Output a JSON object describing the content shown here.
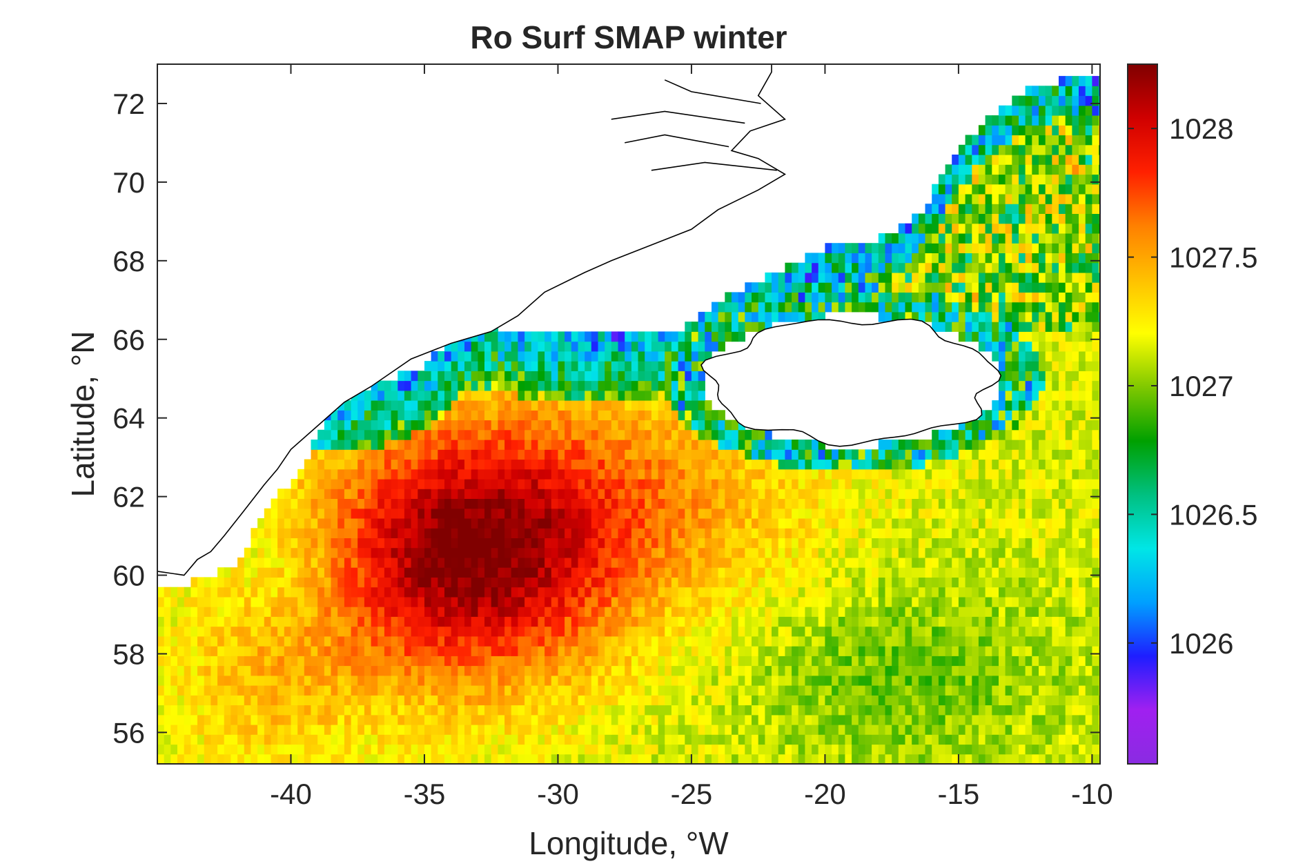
{
  "chart_data": {
    "type": "heatmap",
    "title": "Ro Surf SMAP winter",
    "xlabel": "Longitude, °W",
    "ylabel": "Latitude, °N",
    "xlim": [
      -45,
      -9.7
    ],
    "ylim": [
      55.2,
      73
    ],
    "x_ticks": [
      -40,
      -35,
      -30,
      -25,
      -20,
      -15,
      -10
    ],
    "y_ticks": [
      56,
      58,
      60,
      62,
      64,
      66,
      68,
      70,
      72
    ],
    "x_tick_labels": [
      "-40",
      "-35",
      "-30",
      "-25",
      "-20",
      "-15",
      "-10"
    ],
    "y_tick_labels": [
      "56",
      "58",
      "60",
      "62",
      "64",
      "66",
      "68",
      "70",
      "72"
    ],
    "colorbar": {
      "range": [
        1025.53,
        1028.25
      ],
      "ticks": [
        1026,
        1026.5,
        1027,
        1027.5,
        1028
      ],
      "tick_labels": [
        "1026",
        "1026.5",
        "1027",
        "1027.5",
        "1028"
      ],
      "colormap": [
        "#8a2be2",
        "#a020f0",
        "#1e1eff",
        "#00a0ff",
        "#00e6e6",
        "#00c080",
        "#00a000",
        "#80c800",
        "#ffff00",
        "#ffc000",
        "#ff8000",
        "#ff2000",
        "#d00000",
        "#800000"
      ]
    },
    "grid": false,
    "cell_size_deg": [
      0.25,
      0.25
    ],
    "land_regions": [
      "Greenland",
      "Iceland"
    ],
    "field_summary": "surface potential density (kg/m3) from SMAP, winter mean; maximum ~1028.2 near 34W 60N; lower values 1026-1026.8 along Greenland and north of Iceland"
  },
  "colors": {
    "axis": "#262626",
    "coast": "#000000",
    "background": "#ffffff"
  }
}
